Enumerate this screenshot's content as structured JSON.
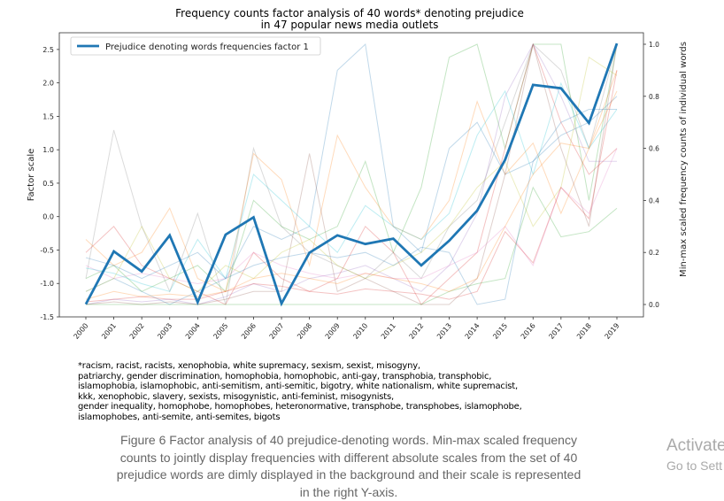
{
  "chart_data": {
    "type": "line",
    "title_line1": "Frequency counts factor analysis of 40 words* denoting prejudice",
    "title_line2": "in 47 popular news media outlets",
    "xlabel": "",
    "ylabel": "Factor scale",
    "ylabel_right": "Min-max scaled frequency counts of individual words",
    "x": [
      "2000",
      "2001",
      "2002",
      "2003",
      "2004",
      "2005",
      "2006",
      "2007",
      "2008",
      "2009",
      "2010",
      "2011",
      "2012",
      "2013",
      "2014",
      "2015",
      "2016",
      "2017",
      "2018",
      "2019"
    ],
    "ylim": [
      -1.5,
      2.75
    ],
    "yticks": [
      "-1.5",
      "-1.0",
      "-0.5",
      "0.0",
      "0.5",
      "1.0",
      "1.5",
      "2.0",
      "2.5"
    ],
    "ylim_right": [
      -0.05,
      1.05
    ],
    "yticks_right": [
      "0.0",
      "0.2",
      "0.4",
      "0.6",
      "0.8",
      "1.0"
    ],
    "grid": false,
    "legend_position": "top-left",
    "series": [
      {
        "name": "Prejudice denoting words frequencies factor 1",
        "color": "#1f77b4",
        "values": [
          -1.31,
          -0.52,
          -0.82,
          -0.28,
          -1.28,
          -0.27,
          -0.01,
          -1.3,
          -0.54,
          -0.28,
          -0.41,
          -0.33,
          -0.73,
          -0.36,
          0.09,
          0.85,
          1.97,
          1.92,
          1.4,
          2.59
        ]
      }
    ],
    "background_series_right_axis": [
      {
        "color": "#7f7f7f",
        "values": [
          0.1,
          0.67,
          0.3,
          0.05,
          0.35,
          0.0,
          0.6,
          0.3,
          0.2,
          0.15,
          0.1,
          0.2,
          0.1,
          0.3,
          0.4,
          0.7,
          1.0,
          0.9,
          0.6,
          1.0
        ]
      },
      {
        "color": "#1f77b4",
        "values": [
          0.05,
          0.1,
          0.05,
          0.0,
          0.05,
          0.1,
          0.3,
          0.25,
          0.3,
          0.9,
          1.0,
          0.3,
          0.2,
          0.6,
          0.7,
          0.5,
          0.55,
          0.65,
          0.7,
          0.8
        ]
      },
      {
        "color": "#2ca02c",
        "values": [
          0.1,
          0.15,
          0.05,
          0.1,
          0.15,
          0.05,
          0.4,
          0.3,
          0.25,
          0.3,
          0.55,
          0.2,
          0.45,
          0.95,
          1.0,
          0.6,
          1.0,
          1.0,
          0.4,
          1.0
        ]
      },
      {
        "color": "#ff7f0e",
        "values": [
          0.25,
          0.15,
          0.2,
          0.37,
          0.1,
          0.05,
          0.58,
          0.48,
          0.15,
          0.65,
          0.45,
          0.3,
          0.25,
          0.4,
          0.78,
          0.5,
          0.62,
          0.35,
          0.6,
          0.9
        ]
      },
      {
        "color": "#d62728",
        "values": [
          0.2,
          0.3,
          0.15,
          0.1,
          0.05,
          0.0,
          0.2,
          0.1,
          0.05,
          0.1,
          0.3,
          0.2,
          0.0,
          0.1,
          0.2,
          0.6,
          1.0,
          0.7,
          0.5,
          0.6
        ]
      },
      {
        "color": "#9467bd",
        "values": [
          0.0,
          0.02,
          0.01,
          0.02,
          0.0,
          0.03,
          0.08,
          0.05,
          0.1,
          0.12,
          0.15,
          0.1,
          0.05,
          0.15,
          0.35,
          0.8,
          1.0,
          0.8,
          0.55,
          0.55
        ]
      },
      {
        "color": "#8c564b",
        "values": [
          0.0,
          0.01,
          0.0,
          0.01,
          0.0,
          0.02,
          0.05,
          0.05,
          0.58,
          0.05,
          0.1,
          0.05,
          0.0,
          0.0,
          0.1,
          0.5,
          1.0,
          0.6,
          0.3,
          1.0
        ]
      },
      {
        "color": "#e377c2",
        "values": [
          0.15,
          0.1,
          0.12,
          0.1,
          0.08,
          0.1,
          0.2,
          0.15,
          0.12,
          0.1,
          0.12,
          0.1,
          0.1,
          0.15,
          0.2,
          0.3,
          0.15,
          0.45,
          0.35,
          0.6
        ]
      },
      {
        "color": "#17becf",
        "values": [
          0.14,
          0.12,
          0.08,
          0.05,
          0.25,
          0.1,
          0.5,
          0.4,
          0.3,
          0.2,
          0.38,
          0.3,
          0.25,
          0.35,
          0.65,
          0.82,
          0.5,
          0.85,
          0.6,
          0.75
        ]
      },
      {
        "color": "#bcbd22",
        "values": [
          0.05,
          0.1,
          0.3,
          0.1,
          0.05,
          0.15,
          0.1,
          0.2,
          0.25,
          0.15,
          0.1,
          0.15,
          0.2,
          0.3,
          0.45,
          0.55,
          0.3,
          0.45,
          0.95,
          0.88
        ]
      },
      {
        "color": "#2ca02c",
        "values": [
          0.0,
          0.0,
          0.0,
          0.0,
          0.0,
          0.0,
          0.0,
          0.0,
          0.0,
          0.0,
          0.0,
          0.0,
          0.0,
          0.05,
          0.08,
          0.1,
          0.45,
          0.26,
          0.28,
          0.37
        ]
      },
      {
        "color": "#1f77b4",
        "values": [
          0.18,
          0.15,
          0.1,
          0.15,
          0.2,
          0.1,
          0.15,
          0.18,
          0.2,
          0.18,
          0.2,
          0.15,
          0.22,
          0.2,
          0.0,
          0.02,
          0.55,
          0.7,
          0.75,
          0.75
        ]
      },
      {
        "color": "#ff7f0e",
        "values": [
          0.02,
          0.05,
          0.03,
          0.04,
          0.03,
          0.05,
          0.1,
          0.12,
          0.1,
          0.08,
          0.12,
          0.1,
          0.08,
          0.05,
          0.1,
          0.3,
          0.5,
          0.62,
          0.6,
          0.82
        ]
      },
      {
        "color": "#d62728",
        "values": [
          0.01,
          0.02,
          0.03,
          0.02,
          0.02,
          0.05,
          0.08,
          0.07,
          0.05,
          0.04,
          0.06,
          0.05,
          0.04,
          0.02,
          0.05,
          0.28,
          0.16,
          0.45,
          0.33,
          0.9
        ]
      }
    ]
  },
  "footnote": "*racism, racist, racists, xenophobia, white supremacy, sexism, sexist, misogyny,\n patriarchy, gender discrimination, homophobia, homophobic, anti-gay, transphobia, transphobic,\n islamophobia, islamophobic, anti-semitism, anti-semitic, bigotry, white nationalism, white supremacist,\n kkk, xenophobic, slavery, sexists, misogynistic, anti-feminist, misogynists,\n gender inequality, homophobe, homophobes, heteronormative, transphobe, transphobes, islamophobe,\n islamophobes, anti-semite, anti-semites, bigots",
  "caption": "Figure 6 Factor analysis of 40 prejudice-denoting words. Min-max scaled frequency counts to jointly display frequencies with different absolute scales from the set of 40 prejudice words are dimly displayed in the background and their scale is represented in the right Y-axis.",
  "watermark": {
    "line1": "Activate",
    "line2": "Go to Sett"
  }
}
